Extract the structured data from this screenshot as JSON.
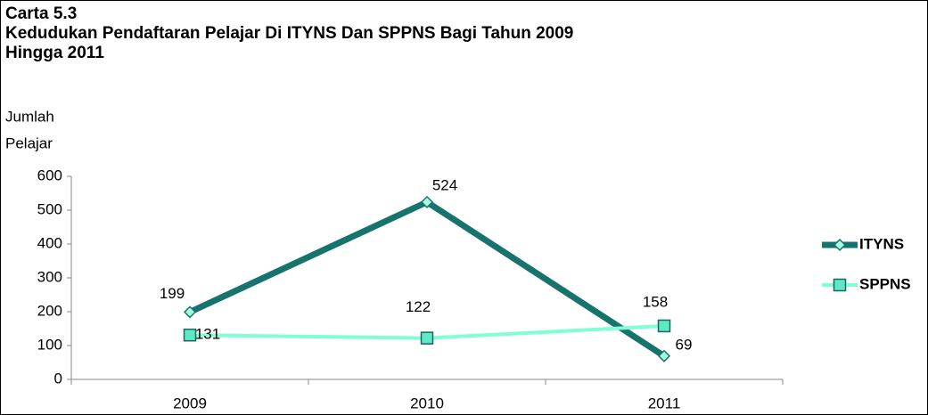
{
  "chart_data": {
    "type": "line",
    "title": "Carta 5.3",
    "subtitle": [
      "Kedudukan Pendaftaran Pelajar Di ITYNS Dan SPPNS Bagi Tahun 2009",
      "Hingga 2011"
    ],
    "ylabel": [
      "Jumlah",
      "Pelajar"
    ],
    "categories": [
      "2009",
      "2010",
      "2011"
    ],
    "series": [
      {
        "name": "ITYNS",
        "color": "#17736d",
        "values": [
          199,
          524,
          69
        ]
      },
      {
        "name": "SPPNS",
        "color": "#7fffd4",
        "values": [
          131,
          122,
          158
        ]
      }
    ],
    "ylim": [
      0,
      600
    ],
    "yticks": [
      0,
      100,
      200,
      300,
      400,
      500,
      600
    ],
    "legend": "right"
  }
}
